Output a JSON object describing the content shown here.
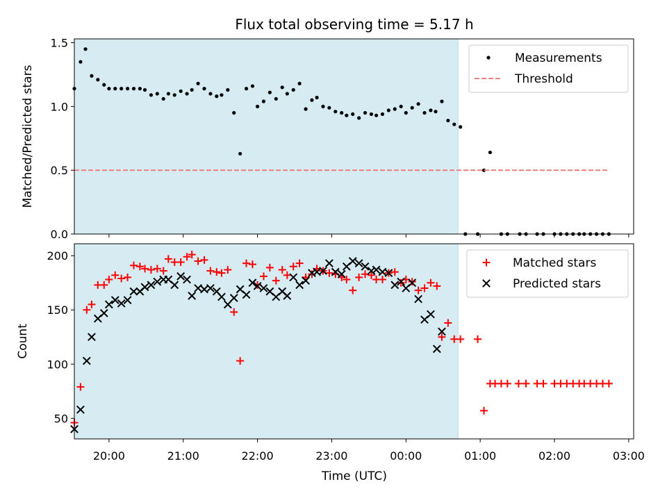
{
  "chart_data": [
    {
      "type": "scatter",
      "title": "Flux total observing time = 5.17 h",
      "xlabel": "",
      "ylabel": "Matched/Predicted stars",
      "ylim": [
        0.0,
        1.53
      ],
      "yticks": [
        "0.0",
        "0.5",
        "1.0",
        "1.5"
      ],
      "xlim": [
        "19:32",
        "03:04"
      ],
      "shaded_span": [
        "19:32",
        "00:42"
      ],
      "legend_position": "top-right",
      "series": [
        {
          "name": "Measurements",
          "color": "#000000",
          "marker": "dot",
          "points": [
            [
              "19:32",
              1.14
            ],
            [
              "19:37",
              1.35
            ],
            [
              "19:41",
              1.45
            ],
            [
              "19:46",
              1.24
            ],
            [
              "19:51",
              1.21
            ],
            [
              "19:56",
              1.17
            ],
            [
              "20:00",
              1.14
            ],
            [
              "20:05",
              1.14
            ],
            [
              "20:10",
              1.14
            ],
            [
              "20:15",
              1.14
            ],
            [
              "20:20",
              1.14
            ],
            [
              "20:25",
              1.14
            ],
            [
              "20:29",
              1.13
            ],
            [
              "20:34",
              1.09
            ],
            [
              "20:39",
              1.1
            ],
            [
              "20:44",
              1.06
            ],
            [
              "20:48",
              1.1
            ],
            [
              "20:53",
              1.09
            ],
            [
              "20:58",
              1.12
            ],
            [
              "21:03",
              1.1
            ],
            [
              "21:07",
              1.13
            ],
            [
              "21:12",
              1.18
            ],
            [
              "21:17",
              1.14
            ],
            [
              "21:22",
              1.1
            ],
            [
              "21:27",
              1.08
            ],
            [
              "21:31",
              1.09
            ],
            [
              "21:36",
              1.13
            ],
            [
              "21:41",
              0.95
            ],
            [
              "21:46",
              0.63
            ],
            [
              "21:51",
              1.14
            ],
            [
              "21:56",
              1.16
            ],
            [
              "22:00",
              1.0
            ],
            [
              "22:05",
              1.04
            ],
            [
              "22:10",
              1.11
            ],
            [
              "22:15",
              1.06
            ],
            [
              "22:20",
              1.15
            ],
            [
              "22:24",
              1.1
            ],
            [
              "22:29",
              1.13
            ],
            [
              "22:34",
              1.18
            ],
            [
              "22:39",
              0.98
            ],
            [
              "22:44",
              1.05
            ],
            [
              "22:48",
              1.07
            ],
            [
              "22:53",
              1.0
            ],
            [
              "22:58",
              0.99
            ],
            [
              "23:03",
              0.96
            ],
            [
              "23:08",
              0.95
            ],
            [
              "23:12",
              0.93
            ],
            [
              "23:17",
              0.94
            ],
            [
              "23:22",
              0.91
            ],
            [
              "23:27",
              0.95
            ],
            [
              "23:32",
              0.94
            ],
            [
              "23:36",
              0.93
            ],
            [
              "23:41",
              0.94
            ],
            [
              "23:46",
              0.97
            ],
            [
              "23:51",
              0.98
            ],
            [
              "23:56",
              1.0
            ],
            [
              "24:00",
              0.95
            ],
            [
              "24:05",
              0.99
            ],
            [
              "24:10",
              1.02
            ],
            [
              "24:15",
              0.95
            ],
            [
              "24:20",
              0.97
            ],
            [
              "24:24",
              0.96
            ],
            [
              "24:29",
              1.04
            ],
            [
              "24:34",
              0.89
            ],
            [
              "24:39",
              0.86
            ],
            [
              "24:44",
              0.84
            ],
            [
              "24:48",
              0.0
            ],
            [
              "24:58",
              0.0
            ],
            [
              "25:03",
              0.5
            ],
            [
              "25:08",
              0.64
            ],
            [
              "25:17",
              0.0
            ],
            [
              "25:22",
              0.0
            ],
            [
              "25:32",
              0.0
            ],
            [
              "25:37",
              0.0
            ],
            [
              "25:46",
              0.0
            ],
            [
              "25:51",
              0.0
            ],
            [
              "26:00",
              0.0
            ],
            [
              "26:05",
              0.0
            ],
            [
              "26:10",
              0.0
            ],
            [
              "26:15",
              0.0
            ],
            [
              "26:20",
              0.0
            ],
            [
              "26:24",
              0.0
            ],
            [
              "26:29",
              0.0
            ],
            [
              "26:34",
              0.0
            ],
            [
              "26:39",
              0.0
            ],
            [
              "26:44",
              0.0
            ]
          ]
        },
        {
          "name": "Threshold",
          "color": "#f08080",
          "style": "dashed",
          "points": [
            [
              "19:32",
              0.5
            ],
            [
              "26:44",
              0.5
            ]
          ]
        }
      ]
    },
    {
      "type": "scatter",
      "title": "",
      "xlabel": "Time (UTC)",
      "ylabel": "Count",
      "ylim": [
        31,
        211
      ],
      "yticks": [
        "50",
        "100",
        "150",
        "200"
      ],
      "xlim": [
        "19:32",
        "03:04"
      ],
      "xticks": [
        "20:00",
        "21:00",
        "22:00",
        "23:00",
        "00:00",
        "01:00",
        "02:00",
        "03:00"
      ],
      "shaded_span": [
        "19:32",
        "00:42"
      ],
      "legend_position": "top-right",
      "series": [
        {
          "name": "Matched stars",
          "color": "#ff0000",
          "marker": "plus",
          "points": [
            [
              "19:32",
              46
            ],
            [
              "19:37",
              79
            ],
            [
              "19:42",
              150
            ],
            [
              "19:46",
              155
            ],
            [
              "19:51",
              173
            ],
            [
              "19:56",
              173
            ],
            [
              "20:00",
              178
            ],
            [
              "20:05",
              182
            ],
            [
              "20:10",
              179
            ],
            [
              "20:15",
              180
            ],
            [
              "20:20",
              191
            ],
            [
              "20:25",
              190
            ],
            [
              "20:29",
              188
            ],
            [
              "20:34",
              187
            ],
            [
              "20:39",
              188
            ],
            [
              "20:44",
              186
            ],
            [
              "20:48",
              197
            ],
            [
              "20:53",
              194
            ],
            [
              "20:58",
              194
            ],
            [
              "21:03",
              199
            ],
            [
              "21:07",
              201
            ],
            [
              "21:12",
              195
            ],
            [
              "21:17",
              196
            ],
            [
              "21:22",
              186
            ],
            [
              "21:27",
              185
            ],
            [
              "21:31",
              184
            ],
            [
              "21:36",
              187
            ],
            [
              "21:41",
              148
            ],
            [
              "21:46",
              103
            ],
            [
              "21:51",
              193
            ],
            [
              "21:56",
              192
            ],
            [
              "22:00",
              173
            ],
            [
              "22:05",
              181
            ],
            [
              "22:10",
              189
            ],
            [
              "22:15",
              177
            ],
            [
              "22:20",
              187
            ],
            [
              "22:24",
              182
            ],
            [
              "22:29",
              190
            ],
            [
              "22:34",
              193
            ],
            [
              "22:39",
              180
            ],
            [
              "22:44",
              183
            ],
            [
              "22:48",
              188
            ],
            [
              "22:53",
              186
            ],
            [
              "22:58",
              184
            ],
            [
              "23:03",
              183
            ],
            [
              "23:08",
              180
            ],
            [
              "23:12",
              178
            ],
            [
              "23:17",
              168
            ],
            [
              "23:22",
              180
            ],
            [
              "23:27",
              183
            ],
            [
              "23:32",
              182
            ],
            [
              "23:36",
              178
            ],
            [
              "23:41",
              178
            ],
            [
              "23:46",
              184
            ],
            [
              "23:51",
              185
            ],
            [
              "23:56",
              175
            ],
            [
              "24:00",
              178
            ],
            [
              "24:05",
              176
            ],
            [
              "24:10",
              168
            ],
            [
              "24:15",
              170
            ],
            [
              "24:20",
              175
            ],
            [
              "24:25",
              172
            ],
            [
              "24:29",
              125
            ],
            [
              "24:34",
              138
            ],
            [
              "24:39",
              123
            ],
            [
              "24:44",
              123
            ],
            [
              "24:58",
              123
            ],
            [
              "25:03",
              57
            ],
            [
              "25:08",
              82
            ],
            [
              "25:12",
              82
            ],
            [
              "25:17",
              82
            ],
            [
              "25:22",
              82
            ],
            [
              "25:31",
              82
            ],
            [
              "25:37",
              82
            ],
            [
              "25:46",
              82
            ],
            [
              "25:51",
              82
            ],
            [
              "26:00",
              82
            ],
            [
              "26:05",
              82
            ],
            [
              "26:10",
              82
            ],
            [
              "26:15",
              82
            ],
            [
              "26:20",
              82
            ],
            [
              "26:24",
              82
            ],
            [
              "26:29",
              82
            ],
            [
              "26:34",
              82
            ],
            [
              "26:39",
              82
            ],
            [
              "26:44",
              82
            ]
          ]
        },
        {
          "name": "Predicted stars",
          "color": "#000000",
          "marker": "x",
          "points": [
            [
              "19:32",
              40
            ],
            [
              "19:37",
              58
            ],
            [
              "19:42",
              103
            ],
            [
              "19:46",
              125
            ],
            [
              "19:51",
              142
            ],
            [
              "19:56",
              147
            ],
            [
              "20:00",
              155
            ],
            [
              "20:05",
              159
            ],
            [
              "20:10",
              156
            ],
            [
              "20:15",
              159
            ],
            [
              "20:20",
              167
            ],
            [
              "20:25",
              167
            ],
            [
              "20:29",
              171
            ],
            [
              "20:34",
              173
            ],
            [
              "20:39",
              176
            ],
            [
              "20:44",
              178
            ],
            [
              "20:48",
              178
            ],
            [
              "20:53",
              173
            ],
            [
              "20:58",
              181
            ],
            [
              "21:03",
              178
            ],
            [
              "21:07",
              163
            ],
            [
              "21:12",
              170
            ],
            [
              "21:17",
              169
            ],
            [
              "21:22",
              170
            ],
            [
              "21:27",
              167
            ],
            [
              "21:31",
              162
            ],
            [
              "21:36",
              155
            ],
            [
              "21:41",
              161
            ],
            [
              "21:46",
              169
            ],
            [
              "21:51",
              164
            ],
            [
              "21:56",
              175
            ],
            [
              "22:00",
              172
            ],
            [
              "22:05",
              170
            ],
            [
              "22:10",
              167
            ],
            [
              "22:15",
              162
            ],
            [
              "22:20",
              167
            ],
            [
              "22:24",
              163
            ],
            [
              "22:29",
              180
            ],
            [
              "22:34",
              173
            ],
            [
              "22:39",
              177
            ],
            [
              "22:44",
              184
            ],
            [
              "22:48",
              185
            ],
            [
              "22:53",
              186
            ],
            [
              "22:58",
              193
            ],
            [
              "23:03",
              185
            ],
            [
              "23:08",
              183
            ],
            [
              "23:12",
              190
            ],
            [
              "23:17",
              195
            ],
            [
              "23:22",
              193
            ],
            [
              "23:27",
              190
            ],
            [
              "23:32",
              186
            ],
            [
              "23:36",
              187
            ],
            [
              "23:41",
              185
            ],
            [
              "23:46",
              184
            ],
            [
              "23:51",
              173
            ],
            [
              "23:56",
              176
            ],
            [
              "24:00",
              170
            ],
            [
              "24:05",
              175
            ],
            [
              "24:10",
              160
            ],
            [
              "24:15",
              141
            ],
            [
              "24:20",
              146
            ],
            [
              "24:25",
              114
            ],
            [
              "24:29",
              130
            ]
          ]
        }
      ]
    }
  ]
}
